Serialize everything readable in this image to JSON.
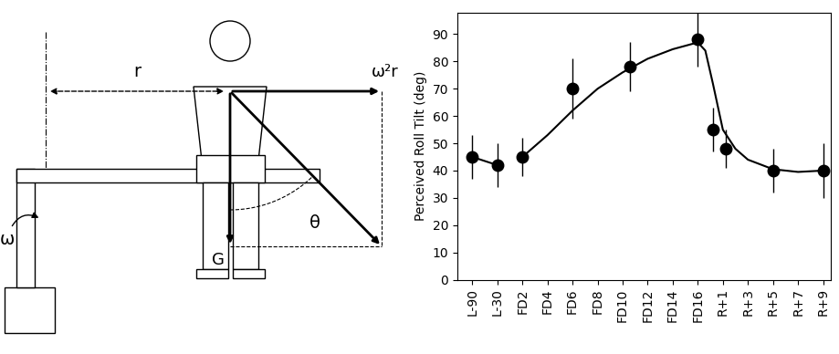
{
  "diagram": {
    "labels": {
      "radius": "r",
      "angular_velocity": "ω",
      "centripetal": "ω²r",
      "angle": "θ",
      "gravity": "G"
    }
  },
  "chart_data": {
    "type": "scatter",
    "y_label": "Perceived Roll Tilt (deg)",
    "categories": [
      "L-90",
      "L-30",
      "FD2",
      "FD4",
      "FD6",
      "FD8",
      "FD10",
      "FD12",
      "FD14",
      "FD16",
      "R+1",
      "R+3",
      "R+5",
      "R+7",
      "R+9"
    ],
    "xlim": [
      -0.6,
      14.3
    ],
    "ylim": [
      0,
      98
    ],
    "yticks": [
      0,
      10,
      20,
      30,
      40,
      50,
      60,
      70,
      80,
      90
    ],
    "series": [
      {
        "type": "scatter",
        "marker": "circle",
        "color": "#000000",
        "x": [
          0,
          1,
          2,
          4,
          6.3,
          9,
          9.6,
          10.1,
          12,
          14
        ],
        "values": [
          45,
          42,
          45,
          70,
          78,
          88,
          55,
          48,
          40,
          40
        ],
        "error": [
          8,
          8,
          7,
          11,
          9,
          10,
          8,
          7,
          8,
          10
        ]
      },
      {
        "type": "line",
        "line_style": "solid",
        "color": "#000000",
        "x": [
          0,
          1,
          1.5,
          2,
          3,
          4,
          5,
          6,
          7,
          8,
          9,
          9.3,
          9.6,
          10,
          10.5,
          11,
          12,
          13,
          14
        ],
        "values": [
          45,
          42,
          null,
          45,
          53,
          62,
          70,
          76,
          81,
          84.5,
          87,
          84,
          72,
          55,
          48,
          44,
          40.5,
          39.5,
          40
        ]
      }
    ]
  }
}
